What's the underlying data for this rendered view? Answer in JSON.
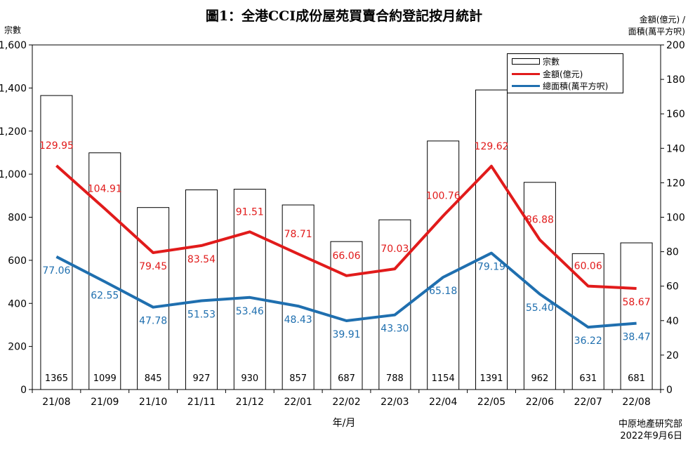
{
  "title": "圖1：全港CCI成份屋苑買賣合約登記按月統計",
  "y_left_label": "宗數",
  "y_right_label_line1": "金額(億元) /",
  "y_right_label_line2": "面積(萬平方呎)",
  "x_label": "年/月",
  "source_line1": "中原地產研究部",
  "source_line2": "2022年9月6日",
  "legend": {
    "bar": "宗數",
    "amount": "金額(億元)",
    "area": "總面積(萬平方呎)"
  },
  "colors": {
    "amount": "#e11b1b",
    "area": "#1f6faf",
    "bar_fill": "#ffffff",
    "bar_stroke": "#000000"
  },
  "chart_data": {
    "type": "bar+line",
    "categories": [
      "21/08",
      "21/09",
      "21/10",
      "21/11",
      "21/12",
      "22/01",
      "22/02",
      "22/03",
      "22/04",
      "22/05",
      "22/06",
      "22/07",
      "22/08"
    ],
    "ylim_left": [
      0,
      1600
    ],
    "yticks_left": [
      "0",
      "200",
      "400",
      "600",
      "800",
      "1,000",
      "1,200",
      "1,400",
      "1,600"
    ],
    "ylim_right": [
      0,
      200
    ],
    "yticks_right": [
      "0",
      "20",
      "40",
      "60",
      "80",
      "100",
      "120",
      "140",
      "160",
      "180",
      "200"
    ],
    "series": [
      {
        "name": "宗數",
        "type": "bar",
        "axis": "left",
        "values": [
          1365,
          1099,
          845,
          927,
          930,
          857,
          687,
          788,
          1154,
          1391,
          962,
          631,
          681
        ],
        "labels": [
          "1365",
          "1099",
          "845",
          "927",
          "930",
          "857",
          "687",
          "788",
          "1154",
          "1391",
          "962",
          "631",
          "681"
        ]
      },
      {
        "name": "金額(億元)",
        "type": "line",
        "axis": "right",
        "values": [
          129.95,
          104.91,
          79.45,
          83.54,
          91.51,
          78.71,
          66.06,
          70.03,
          100.76,
          129.62,
          86.88,
          60.06,
          58.67
        ],
        "labels": [
          "129.95",
          "104.91",
          "79.45",
          "83.54",
          "91.51",
          "78.71",
          "66.06",
          "70.03",
          "100.76",
          "129.62",
          "86.88",
          "60.06",
          "58.67"
        ]
      },
      {
        "name": "總面積(萬平方呎)",
        "type": "line",
        "axis": "right",
        "values": [
          77.06,
          62.55,
          47.78,
          51.53,
          53.46,
          48.43,
          39.91,
          43.3,
          65.18,
          79.19,
          55.4,
          36.22,
          38.47
        ],
        "labels": [
          "77.06",
          "62.55",
          "47.78",
          "51.53",
          "53.46",
          "48.43",
          "39.91",
          "43.30",
          "65.18",
          "79.19",
          "55.40",
          "36.22",
          "38.47"
        ]
      }
    ],
    "grid": false,
    "legend_position": "top-right"
  }
}
